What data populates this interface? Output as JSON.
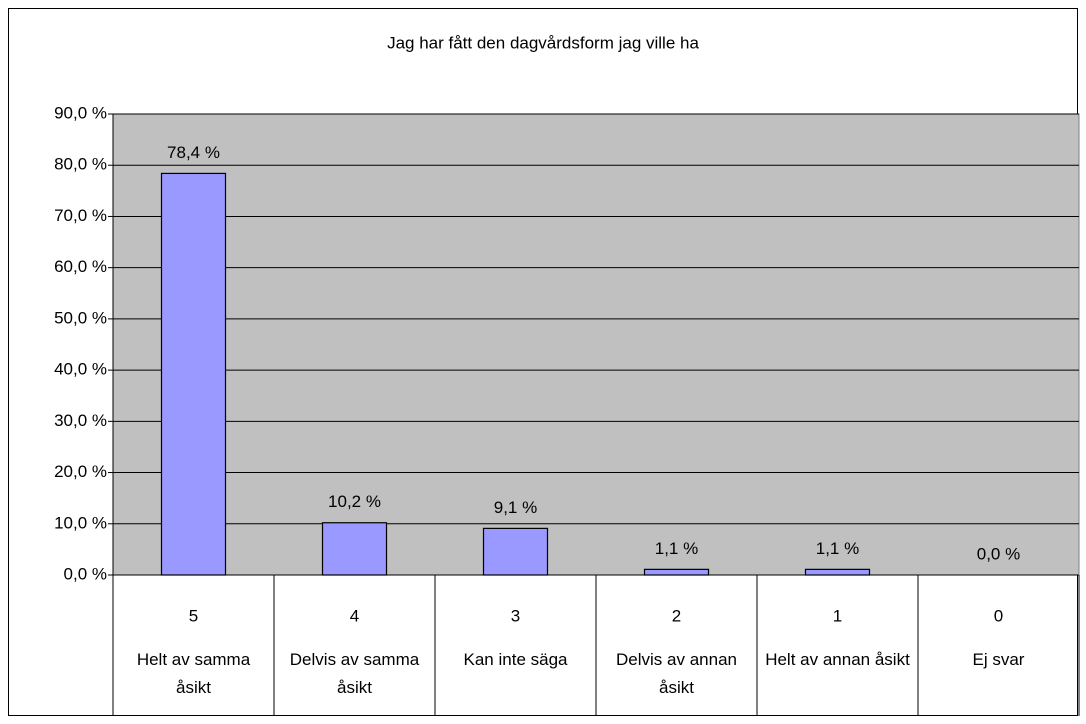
{
  "chart_data": {
    "type": "bar",
    "title": "Jag har fått den dagvårdsform jag ville ha",
    "categories": [
      "5",
      "4",
      "3",
      "2",
      "1",
      "0"
    ],
    "category_descriptions": [
      "Helt av samma åsikt",
      "Delvis av samma åsikt",
      "Kan inte säga",
      "Delvis av annan åsikt",
      "Helt av annan åsikt",
      "Ej svar"
    ],
    "values": [
      78.4,
      10.2,
      9.1,
      1.1,
      1.1,
      0.0
    ],
    "value_labels": [
      "78,4 %",
      "10,2 %",
      "9,1 %",
      "1,1 %",
      "1,1 %",
      "0,0 %"
    ],
    "color": "#9999ff",
    "ylim": [
      0,
      90
    ],
    "yticks": [
      {
        "value": 0,
        "label": "0,0 %"
      },
      {
        "value": 10,
        "label": "10,0 %"
      },
      {
        "value": 20,
        "label": "20,0 %"
      },
      {
        "value": 30,
        "label": "30,0 %"
      },
      {
        "value": 40,
        "label": "40,0 %"
      },
      {
        "value": 50,
        "label": "50,0 %"
      },
      {
        "value": 60,
        "label": "60,0 %"
      },
      {
        "value": 70,
        "label": "70,0 %"
      },
      {
        "value": 80,
        "label": "80,0 %"
      },
      {
        "value": 90,
        "label": "90,0 %"
      }
    ],
    "grid": true
  }
}
